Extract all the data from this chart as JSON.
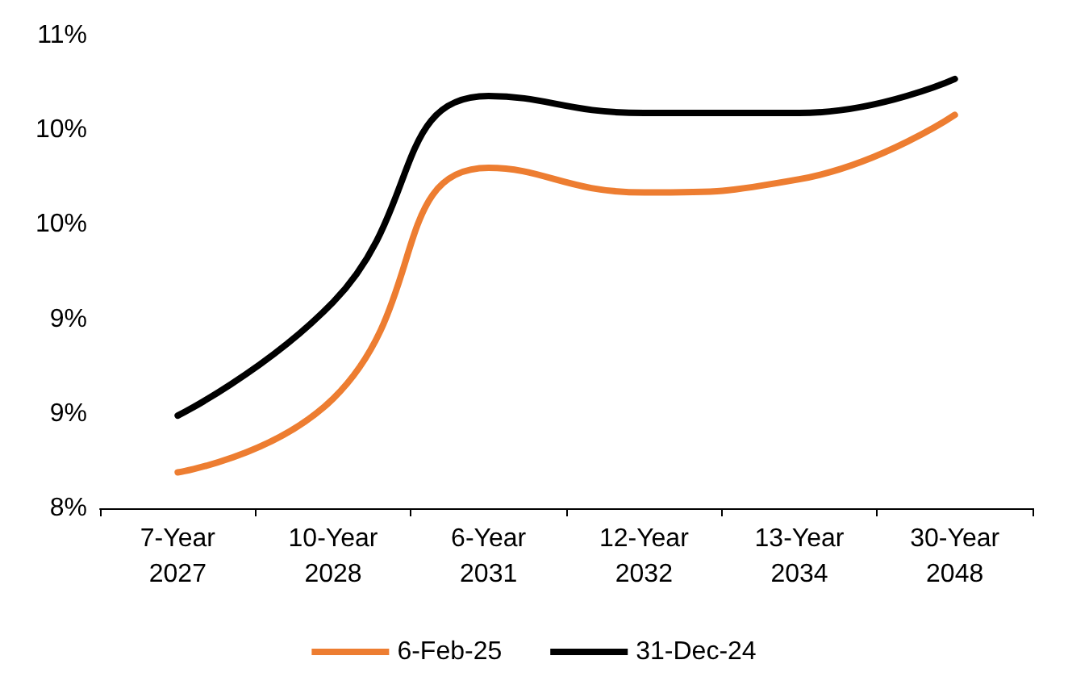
{
  "chart_data": {
    "type": "line",
    "categories": [
      "7-Year\n2027",
      "10-Year\n2028",
      "6-Year\n2031",
      "12-Year\n2032",
      "13-Year\n2034",
      "30-Year\n2048"
    ],
    "series": [
      {
        "name": "6-Feb-25",
        "color": "#ed7d31",
        "values": [
          8.19,
          8.58,
          9.8,
          9.67,
          9.74,
          10.08
        ]
      },
      {
        "name": "31-Dec-24",
        "color": "#000000",
        "values": [
          8.49,
          9.09,
          10.18,
          10.09,
          10.09,
          10.27
        ]
      }
    ],
    "ylim": [
      8,
      10.5
    ],
    "yticks": [
      {
        "value": 8,
        "label": "8%"
      },
      {
        "value": 8.5,
        "label": "9%"
      },
      {
        "value": 9,
        "label": "9%"
      },
      {
        "value": 9.5,
        "label": "10%"
      },
      {
        "value": 10,
        "label": "10%"
      },
      {
        "value": 10.5,
        "label": "11%"
      }
    ],
    "grid": false,
    "legend": "bottom",
    "marker": "none",
    "line_style": "solid"
  }
}
